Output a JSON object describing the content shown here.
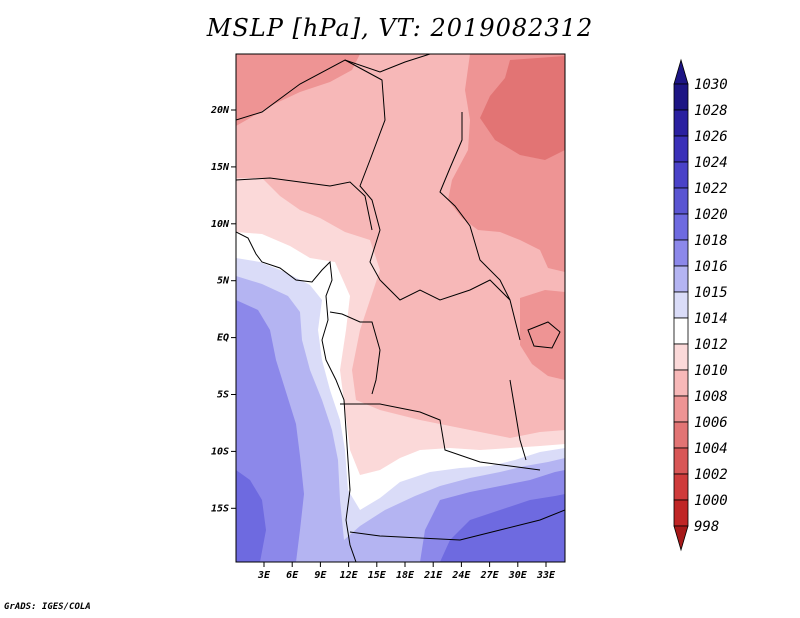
{
  "title": "MSLP [hPa], VT: 2019082312",
  "credit": "GrADS: IGES/COLA",
  "lat_labels": [
    "20N",
    "15N",
    "10N",
    "5N",
    "EQ",
    "5S",
    "10S",
    "15S"
  ],
  "lon_labels": [
    "3E",
    "6E",
    "9E",
    "12E",
    "15E",
    "18E",
    "21E",
    "24E",
    "27E",
    "30E",
    "33E"
  ],
  "colorbar": {
    "levels": [
      "1030",
      "1028",
      "1026",
      "1024",
      "1022",
      "1020",
      "1018",
      "1016",
      "1015",
      "1014",
      "1012",
      "1010",
      "1008",
      "1006",
      "1004",
      "1002",
      "1000",
      "998"
    ],
    "colors": [
      "#1d1584",
      "#2a20a0",
      "#3a30b8",
      "#4a42c8",
      "#5a55d2",
      "#6e6ae0",
      "#8c88ea",
      "#b4b4f2",
      "#dadcf8",
      "#ffffff",
      "#fbd9d9",
      "#f7b8b8",
      "#ee9494",
      "#e27474",
      "#d85656",
      "#cf3b3b",
      "#c02626",
      "#a61919"
    ],
    "top_arrow_color": "#1d1584",
    "bottom_arrow_color": "#a61919"
  },
  "map": {
    "colors": {
      "1008": "#ee9494",
      "1010": "#f7b8b8",
      "1012": "#fbd9d9",
      "1014": "#ffffff",
      "1015": "#dadcf8",
      "1016": "#b4b4f2",
      "1018": "#8c88ea",
      "1020": "#6e6ae0"
    }
  }
}
